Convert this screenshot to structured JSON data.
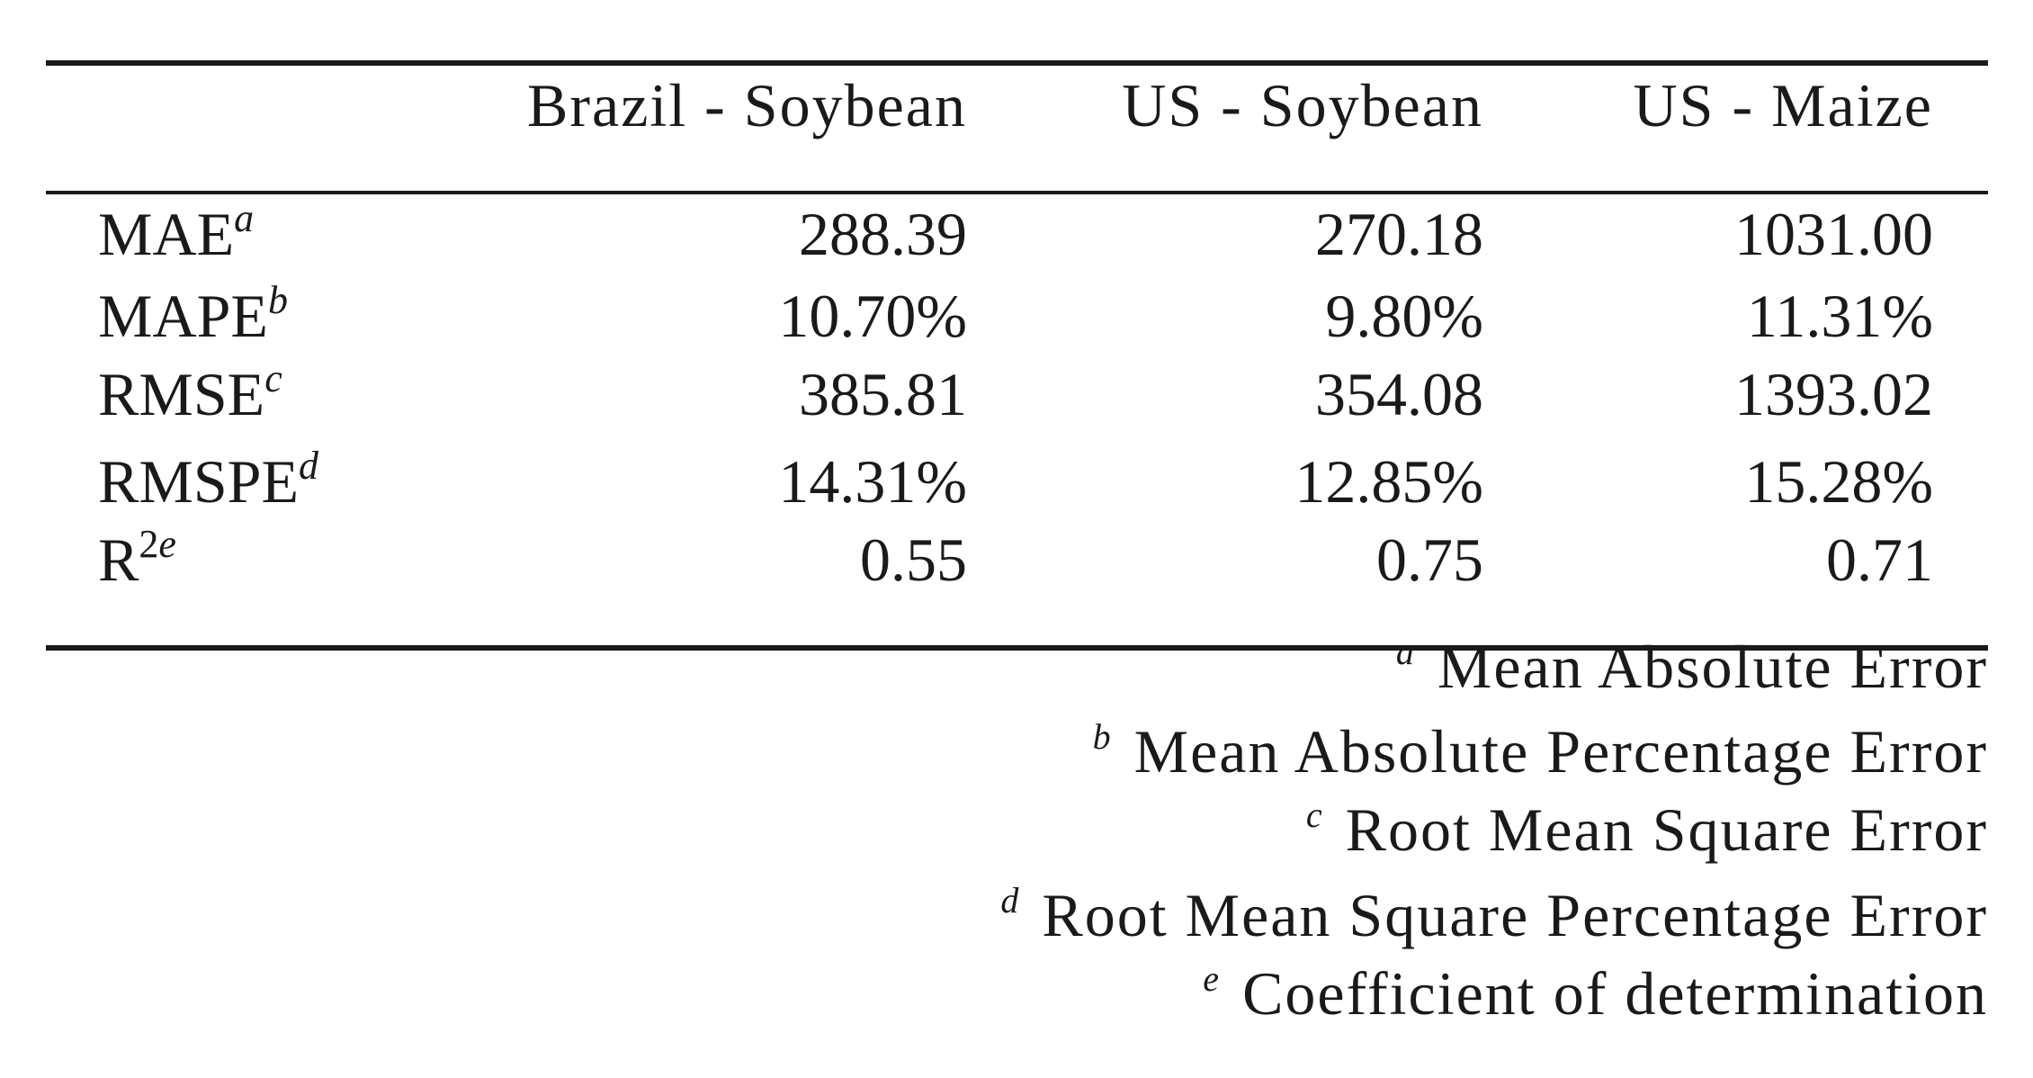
{
  "table": {
    "header": [
      "Brazil - Soybean",
      "US - Soybean",
      "US - Maize"
    ],
    "rows": [
      {
        "metric": "MAE",
        "note": "a",
        "values": [
          "288.39",
          "270.18",
          "1031.00"
        ]
      },
      {
        "metric": "MAPE",
        "note": "b",
        "values": [
          "10.70%",
          "9.80%",
          "11.31%"
        ]
      },
      {
        "metric": "RMSE",
        "note": "c",
        "values": [
          "385.81",
          "354.08",
          "1393.02"
        ]
      },
      {
        "metric": "RMSPE",
        "note": "d",
        "values": [
          "14.31%",
          "12.85%",
          "15.28%"
        ]
      },
      {
        "metric": "R",
        "exponent": "2",
        "note": "e",
        "values": [
          "0.55",
          "0.75",
          "0.71"
        ]
      }
    ]
  },
  "footnotes": [
    {
      "mark": "a",
      "text": "Mean Absolute Error"
    },
    {
      "mark": "b",
      "text": "Mean Absolute Percentage Error"
    },
    {
      "mark": "c",
      "text": "Root Mean Square Error"
    },
    {
      "mark": "d",
      "text": "Root Mean Square Percentage Error"
    },
    {
      "mark": "e",
      "text": "Coefficient of determination"
    }
  ]
}
